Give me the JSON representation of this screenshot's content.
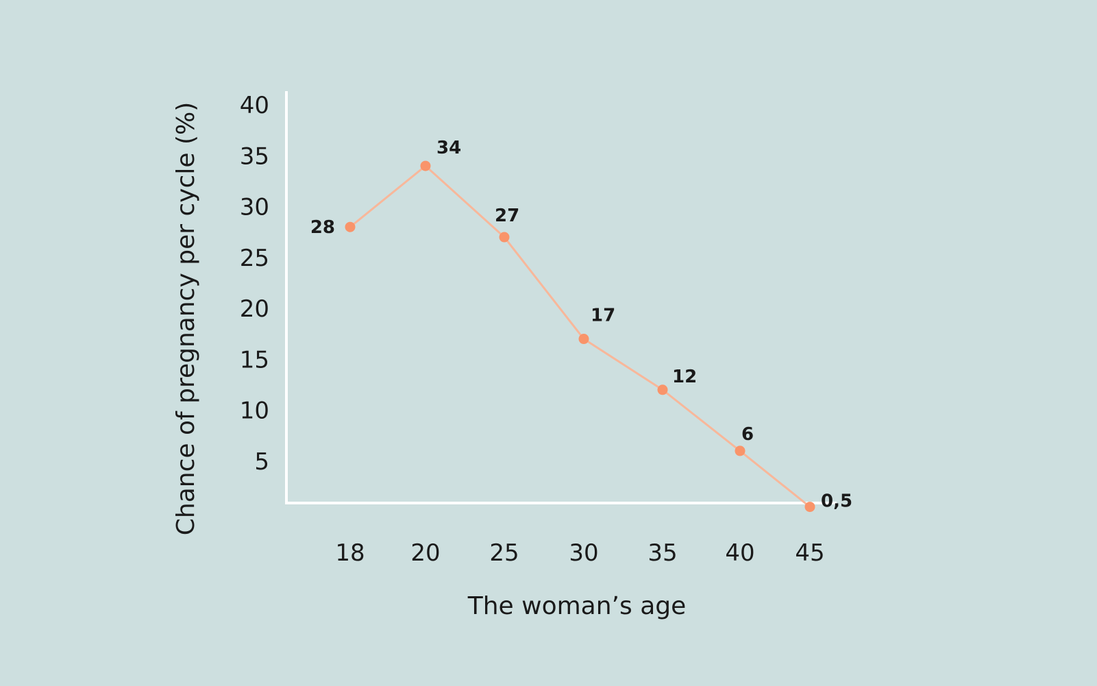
{
  "chart_data": {
    "type": "line",
    "title": "",
    "xlabel": "The woman’s age",
    "ylabel": "Chance of pregnancy per cycle (%)",
    "categories": [
      "18",
      "20",
      "25",
      "30",
      "35",
      "40",
      "45"
    ],
    "values": [
      28,
      34,
      27,
      17,
      12,
      6,
      0.5
    ],
    "data_labels": [
      "28",
      "34",
      "27",
      "17",
      "12",
      "6",
      "0,5"
    ],
    "yticks": [
      "5",
      "10",
      "15",
      "20",
      "25",
      "30",
      "35",
      "40"
    ],
    "ylim": [
      0,
      40
    ],
    "grid": false,
    "legend": "none",
    "colors": {
      "background": "#cddfdf",
      "line": "#f8b79a",
      "marker": "#f9946a",
      "axis": "#ffffff",
      "text": "#1a1a1a"
    }
  }
}
